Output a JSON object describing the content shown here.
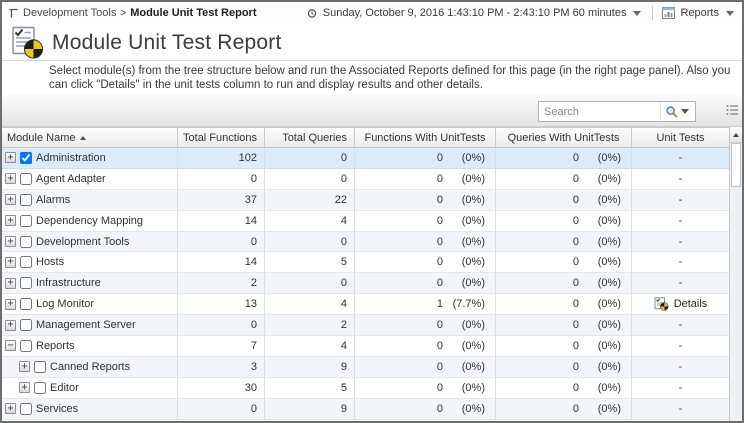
{
  "breadcrumb": {
    "parent": "Development Tools",
    "separator": ">",
    "current": "Module Unit Test Report"
  },
  "topbar": {
    "time_range": "Sunday, October 9, 2016 1:43:10 PM - 2:43:10 PM 60 minutes",
    "reports_label": "Reports"
  },
  "page": {
    "title": "Module Unit Test Report",
    "description": "Select module(s) from the tree structure below and run the Associated Reports defined for this page (in the right page panel). Also you can click \"Details\" in the unit tests column to run and display results and other details."
  },
  "search": {
    "placeholder": "Search"
  },
  "table": {
    "columns": [
      "Module Name",
      "Total Functions",
      "Total Queries",
      "Functions With UnitTests",
      "Queries With UnitTests",
      "Unit Tests"
    ],
    "sort": {
      "column": "Module Name",
      "direction": "asc"
    },
    "details_label": "Details",
    "empty_marker": "-",
    "rows": [
      {
        "name": "Administration",
        "level": 0,
        "expander": "+",
        "checked": true,
        "selected": true,
        "total_functions": "102",
        "total_queries": "0",
        "func_ut": "0",
        "func_ut_pct": "(0%)",
        "query_ut": "0",
        "query_ut_pct": "(0%)",
        "unit_tests": "-",
        "has_details": false
      },
      {
        "name": "Agent Adapter",
        "level": 0,
        "expander": "+",
        "checked": false,
        "selected": false,
        "total_functions": "0",
        "total_queries": "0",
        "func_ut": "0",
        "func_ut_pct": "(0%)",
        "query_ut": "0",
        "query_ut_pct": "(0%)",
        "unit_tests": "-",
        "has_details": false
      },
      {
        "name": "Alarms",
        "level": 0,
        "expander": "+",
        "checked": false,
        "selected": false,
        "total_functions": "37",
        "total_queries": "22",
        "func_ut": "0",
        "func_ut_pct": "(0%)",
        "query_ut": "0",
        "query_ut_pct": "(0%)",
        "unit_tests": "-",
        "has_details": false
      },
      {
        "name": "Dependency Mapping",
        "level": 0,
        "expander": "+",
        "checked": false,
        "selected": false,
        "total_functions": "14",
        "total_queries": "4",
        "func_ut": "0",
        "func_ut_pct": "(0%)",
        "query_ut": "0",
        "query_ut_pct": "(0%)",
        "unit_tests": "-",
        "has_details": false
      },
      {
        "name": "Development Tools",
        "level": 0,
        "expander": "+",
        "checked": false,
        "selected": false,
        "total_functions": "0",
        "total_queries": "0",
        "func_ut": "0",
        "func_ut_pct": "(0%)",
        "query_ut": "0",
        "query_ut_pct": "(0%)",
        "unit_tests": "-",
        "has_details": false
      },
      {
        "name": "Hosts",
        "level": 0,
        "expander": "+",
        "checked": false,
        "selected": false,
        "total_functions": "14",
        "total_queries": "5",
        "func_ut": "0",
        "func_ut_pct": "(0%)",
        "query_ut": "0",
        "query_ut_pct": "(0%)",
        "unit_tests": "-",
        "has_details": false
      },
      {
        "name": "Infrastructure",
        "level": 0,
        "expander": "+",
        "checked": false,
        "selected": false,
        "total_functions": "2",
        "total_queries": "0",
        "func_ut": "0",
        "func_ut_pct": "(0%)",
        "query_ut": "0",
        "query_ut_pct": "(0%)",
        "unit_tests": "-",
        "has_details": false
      },
      {
        "name": "Log Monitor",
        "level": 0,
        "expander": "+",
        "checked": false,
        "selected": false,
        "total_functions": "13",
        "total_queries": "4",
        "func_ut": "1",
        "func_ut_pct": "(7.7%)",
        "query_ut": "0",
        "query_ut_pct": "(0%)",
        "unit_tests": "Details",
        "has_details": true
      },
      {
        "name": "Management Server",
        "level": 0,
        "expander": "+",
        "checked": false,
        "selected": false,
        "total_functions": "0",
        "total_queries": "2",
        "func_ut": "0",
        "func_ut_pct": "(0%)",
        "query_ut": "0",
        "query_ut_pct": "(0%)",
        "unit_tests": "-",
        "has_details": false
      },
      {
        "name": "Reports",
        "level": 0,
        "expander": "−",
        "checked": false,
        "selected": false,
        "total_functions": "7",
        "total_queries": "4",
        "func_ut": "0",
        "func_ut_pct": "(0%)",
        "query_ut": "0",
        "query_ut_pct": "(0%)",
        "unit_tests": "-",
        "has_details": false
      },
      {
        "name": "Canned Reports",
        "level": 1,
        "expander": "+",
        "checked": false,
        "selected": false,
        "total_functions": "3",
        "total_queries": "9",
        "func_ut": "0",
        "func_ut_pct": "(0%)",
        "query_ut": "0",
        "query_ut_pct": "(0%)",
        "unit_tests": "-",
        "has_details": false
      },
      {
        "name": "Editor",
        "level": 1,
        "expander": "+",
        "checked": false,
        "selected": false,
        "total_functions": "30",
        "total_queries": "5",
        "func_ut": "0",
        "func_ut_pct": "(0%)",
        "query_ut": "0",
        "query_ut_pct": "(0%)",
        "unit_tests": "-",
        "has_details": false
      },
      {
        "name": "Services",
        "level": 0,
        "expander": "+",
        "checked": false,
        "selected": false,
        "total_functions": "0",
        "total_queries": "9",
        "func_ut": "0",
        "func_ut_pct": "(0%)",
        "query_ut": "0",
        "query_ut_pct": "(0%)",
        "unit_tests": "-",
        "has_details": false
      }
    ]
  },
  "colors": {
    "selected_row": "#dcebfa",
    "alt_row": "#f2f6fa",
    "pie_yellow": "#f2c21d",
    "pie_black": "#1d1d1d",
    "window_border": "#6e6e6e"
  }
}
